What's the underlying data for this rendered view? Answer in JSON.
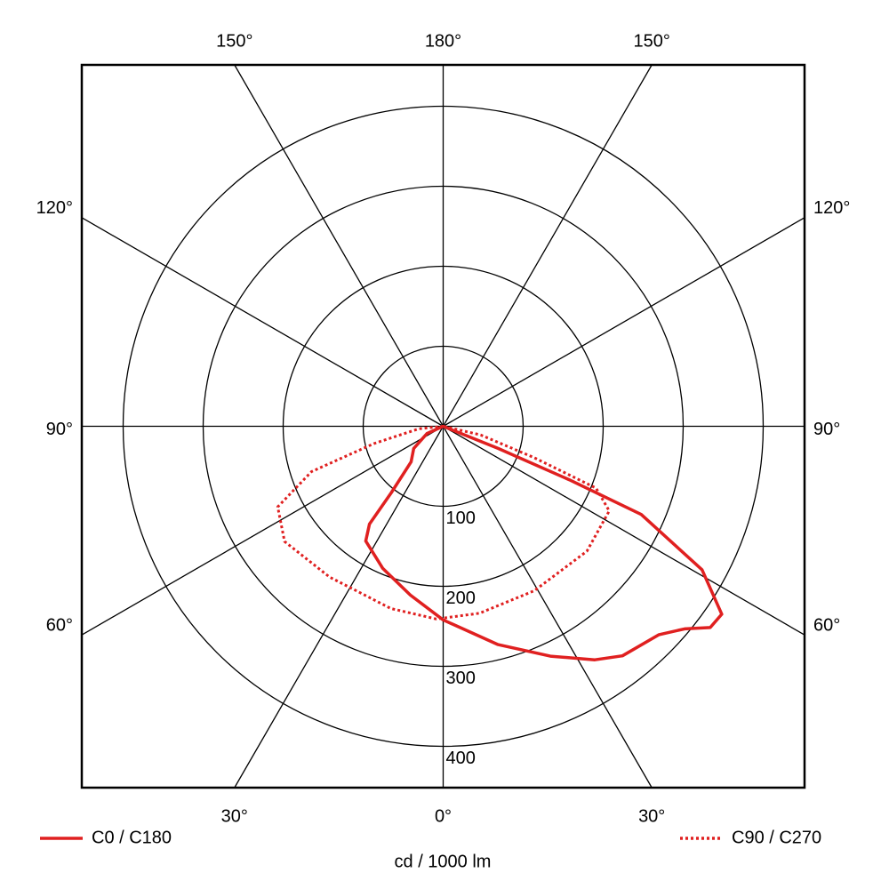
{
  "chart_data": {
    "type": "polar",
    "axis_label": "cd / 1000 lm",
    "rlim": [
      0,
      400
    ],
    "rticks": [
      100,
      200,
      300,
      400
    ],
    "angle_ticks": [
      {
        "value": 0,
        "label": "0°"
      },
      {
        "value": 30,
        "label": "30°"
      },
      {
        "value": 60,
        "label": "60°"
      },
      {
        "value": 90,
        "label": "90°"
      },
      {
        "value": 120,
        "label": "120°"
      },
      {
        "value": 150,
        "label": "150°"
      },
      {
        "value": 180,
        "label": "180°"
      }
    ],
    "grid": true,
    "series": [
      {
        "name": "C0 / C180",
        "color": "#e02020",
        "line_style": "solid",
        "angles": [
          -90,
          -66,
          -53,
          -42,
          -38,
          -37,
          -34,
          -23,
          -11,
          0,
          14,
          25,
          33,
          38,
          46,
          50,
          53,
          56,
          61,
          66,
          67,
          68,
          90
        ],
        "values": [
          0,
          22,
          46,
          60,
          105,
          153,
          173,
          193,
          215,
          242,
          281,
          317,
          348,
          364,
          375,
          394,
          418,
          420,
          370,
          271,
          171,
          74,
          0
        ]
      },
      {
        "name": "C90 / C270",
        "color": "#e02020",
        "line_style": "dotted",
        "angles": [
          -90,
          -84,
          -76,
          -71,
          -64,
          -54,
          -37,
          -16,
          -2,
          11,
          29,
          49,
          63,
          68,
          71,
          77,
          90
        ],
        "values": [
          0,
          31,
          89,
          174,
          230,
          245,
          236,
          237,
          241,
          238,
          235,
          238,
          233,
          206,
          120,
          48,
          0
        ]
      }
    ]
  }
}
